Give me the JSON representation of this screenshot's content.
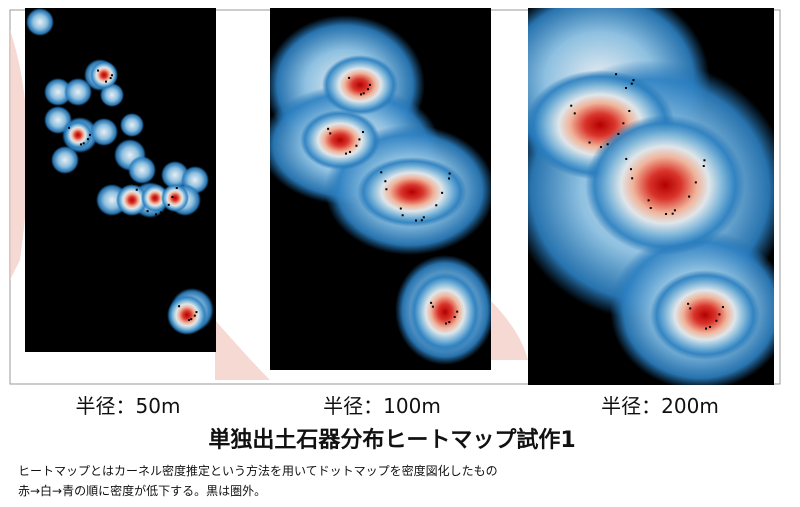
{
  "panels": [
    {
      "caption": "半径：50m"
    },
    {
      "caption": "半径：100m"
    },
    {
      "caption": "半径：200m"
    }
  ],
  "title": "単独出土石器分布ヒートマップ試作1",
  "description": [
    "ヒートマップとはカーネル密度推定という方法を用いてドットマップを密度図化したもの",
    "赤→白→青の順に密度が低下する。黒は圏外。"
  ]
}
